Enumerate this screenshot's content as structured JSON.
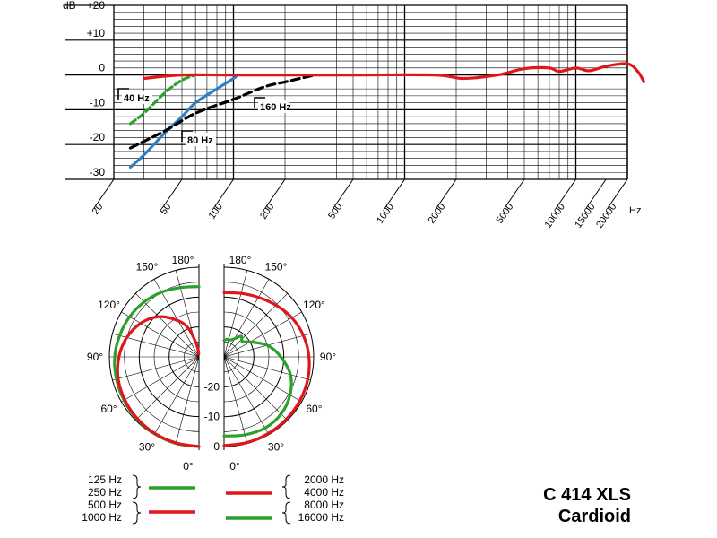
{
  "chart_data": [
    {
      "type": "line",
      "x_scale": "log",
      "y_unit": "dB",
      "y_ticks": [
        "+20",
        "+10",
        "0",
        "-10",
        "-20",
        "-30"
      ],
      "x_ticks": [
        "20",
        "50",
        "100",
        "200",
        "500",
        "1000",
        "2000",
        "5000",
        "10000",
        "15000",
        "20000"
      ],
      "x_unit": "Hz",
      "ylim": [
        -30,
        20
      ],
      "xlim": [
        20,
        20000
      ],
      "grid": true,
      "series": [
        {
          "name": "",
          "style": "solid",
          "color": "#2f7fc4",
          "points": [
            [
              25,
              -26.5
            ],
            [
              30,
              -23
            ],
            [
              40,
              -16.5
            ],
            [
              50,
              -12
            ],
            [
              60,
              -8
            ],
            [
              80,
              -4
            ],
            [
              100,
              -1
            ],
            [
              105,
              0
            ]
          ]
        },
        {
          "name": "",
          "style": "dashed",
          "color": "#000000",
          "points": [
            [
              25,
              -21
            ],
            [
              40,
              -16
            ],
            [
              60,
              -11
            ],
            [
              100,
              -7
            ],
            [
              150,
              -3.5
            ],
            [
              200,
              -2
            ],
            [
              300,
              0
            ]
          ]
        },
        {
          "name": "",
          "style": "dashed",
          "color": "#2ca02c",
          "points": [
            [
              25,
              -14
            ],
            [
              30,
              -11
            ],
            [
              40,
              -5
            ],
            [
              50,
              -1.5
            ],
            [
              60,
              0
            ]
          ]
        },
        {
          "name": "",
          "style": "solid",
          "color": "#e0161b",
          "points": [
            [
              30,
              -1
            ],
            [
              50,
              0
            ],
            [
              100,
              0
            ],
            [
              500,
              0
            ],
            [
              1500,
              0
            ],
            [
              2200,
              -1
            ],
            [
              3500,
              0
            ],
            [
              5000,
              1.8
            ],
            [
              7000,
              2
            ],
            [
              8000,
              1
            ],
            [
              10000,
              2
            ],
            [
              12000,
              1.2
            ],
            [
              15000,
              2.5
            ],
            [
              20000,
              3.2
            ],
            [
              23000,
              1
            ],
            [
              25000,
              -2
            ]
          ]
        }
      ],
      "annotations": [
        "40 Hz",
        "80 Hz",
        "160 Hz"
      ]
    },
    {
      "type": "polar",
      "angle_labels_left": [
        "180°",
        "150°",
        "120°",
        "90°",
        "60°",
        "30°",
        "0°"
      ],
      "angle_labels_right": [
        "180°",
        "150°",
        "120°",
        "90°",
        "60°",
        "30°",
        "0°"
      ],
      "radial_labels": [
        "-20",
        "-10",
        "0"
      ],
      "rlim": [
        -30,
        0
      ],
      "series": [
        {
          "side": "left",
          "color": "#2ca02c",
          "points_deg_db": [
            [
              0,
              0
            ],
            [
              15,
              0
            ],
            [
              30,
              -0.3
            ],
            [
              45,
              -0.6
            ],
            [
              60,
              -1
            ],
            [
              75,
              -1.4
            ],
            [
              90,
              -1.8
            ],
            [
              105,
              -2.5
            ],
            [
              120,
              -3.2
            ],
            [
              135,
              -4
            ],
            [
              150,
              -5
            ],
            [
              165,
              -6
            ],
            [
              180,
              -6.5
            ]
          ]
        },
        {
          "side": "left",
          "color": "#e0161b",
          "points_deg_db": [
            [
              0,
              0
            ],
            [
              15,
              -0.2
            ],
            [
              30,
              -0.4
            ],
            [
              45,
              -0.8
            ],
            [
              60,
              -1.3
            ],
            [
              75,
              -2
            ],
            [
              90,
              -3.2
            ],
            [
              105,
              -5
            ],
            [
              120,
              -7.5
            ],
            [
              135,
              -11
            ],
            [
              150,
              -16
            ],
            [
              160,
              -20
            ],
            [
              170,
              -26
            ],
            [
              175,
              -29
            ]
          ]
        },
        {
          "side": "right",
          "color": "#e0161b",
          "points_deg_db": [
            [
              0,
              -0.3
            ],
            [
              15,
              -0.3
            ],
            [
              30,
              -0.4
            ],
            [
              45,
              -0.5
            ],
            [
              60,
              -0.7
            ],
            [
              75,
              -1
            ],
            [
              90,
              -1.6
            ],
            [
              105,
              -2.5
            ],
            [
              120,
              -3.8
            ],
            [
              135,
              -5.5
            ],
            [
              150,
              -7
            ],
            [
              165,
              -8
            ],
            [
              180,
              -8.5
            ]
          ]
        },
        {
          "side": "right",
          "color": "#2ca02c",
          "points_deg_db": [
            [
              0,
              -3.5
            ],
            [
              15,
              -3
            ],
            [
              30,
              -2.5
            ],
            [
              45,
              -3
            ],
            [
              60,
              -4.5
            ],
            [
              75,
              -7
            ],
            [
              90,
              -11
            ],
            [
              105,
              -15
            ],
            [
              120,
              -20
            ],
            [
              130,
              -22
            ],
            [
              140,
              -21
            ],
            [
              150,
              -23
            ],
            [
              160,
              -24
            ],
            [
              170,
              -24
            ],
            [
              180,
              -24.5
            ]
          ]
        }
      ],
      "legend": {
        "left_green": [
          "125 Hz",
          "250 Hz"
        ],
        "left_red": [
          "500 Hz",
          "1000 Hz"
        ],
        "right_red": [
          "2000 Hz",
          "4000 Hz"
        ],
        "right_green": [
          "8000 Hz",
          "16000 Hz"
        ]
      }
    }
  ],
  "title_line1": "C 414 XLS",
  "title_line2": "Cardioid"
}
